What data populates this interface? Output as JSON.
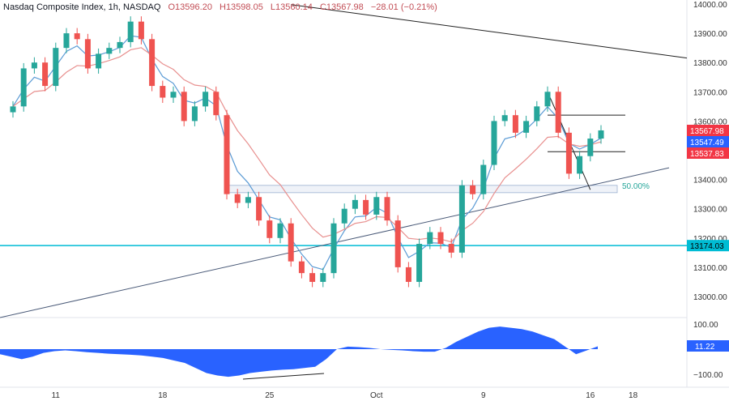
{
  "header": {
    "symbol": "Nasdaq Composite Index, 1h, NASDAQ",
    "open": "O13596.20",
    "high": "H13598.05",
    "low": "L13560.14",
    "close": "C13567.98",
    "change": "−28.01 (−0.21%)"
  },
  "colors": {
    "up": "#26a69a",
    "down": "#ef5350",
    "ema_fast": "#5b9bd5",
    "ema_slow": "#e8908f",
    "hline": "#00bcd4",
    "osc": "#2962ff",
    "label_red": "#f23645",
    "label_blue": "#2962ff"
  },
  "chart_data": [
    {
      "type": "candlestick",
      "ylim": [
        12950,
        14000
      ],
      "y_ticks": [
        "14000.00",
        "13900.00",
        "13800.00",
        "13700.00",
        "13600.00",
        "13400.00",
        "13300.00",
        "13200.00",
        "13100.00",
        "13000.00"
      ],
      "x_ticks": [
        {
          "t": "Sep 11 a",
          "label": "11"
        },
        {
          "t": "Sep 18 a",
          "label": "18"
        },
        {
          "t": "Sep 25 a",
          "label": "25"
        },
        {
          "t": "Oct 2 a",
          "label": "Oct"
        },
        {
          "t": "Oct 9 a",
          "label": "9"
        },
        {
          "t": "Oct 16 a",
          "label": "16"
        },
        {
          "t": "Oct 18",
          "label": "18"
        }
      ],
      "candles": [
        {
          "t": "Sep 7 a",
          "c": 13650
        },
        {
          "t": "Sep 7 p",
          "c": 13780
        },
        {
          "t": "Sep 8 a",
          "c": 13800
        },
        {
          "t": "Sep 8 p",
          "c": 13720
        },
        {
          "t": "Sep 11 a",
          "c": 13850
        },
        {
          "t": "Sep 11 p",
          "c": 13900
        },
        {
          "t": "Sep 12 a",
          "c": 13880
        },
        {
          "t": "Sep 12 p",
          "c": 13780
        },
        {
          "t": "Sep 13 a",
          "c": 13830
        },
        {
          "t": "Sep 13 p",
          "c": 13850
        },
        {
          "t": "Sep 14 a",
          "c": 13870
        },
        {
          "t": "Sep 14 p",
          "c": 13940
        },
        {
          "t": "Sep 15 a",
          "c": 13880
        },
        {
          "t": "Sep 15 p",
          "c": 13720
        },
        {
          "t": "Sep 18 a",
          "c": 13680
        },
        {
          "t": "Sep 18 p",
          "c": 13700
        },
        {
          "t": "Sep 19 a",
          "c": 13600
        },
        {
          "t": "Sep 19 p",
          "c": 13650
        },
        {
          "t": "Sep 20 a",
          "c": 13700
        },
        {
          "t": "Sep 20 p",
          "c": 13620
        },
        {
          "t": "Sep 21 a",
          "c": 13350
        },
        {
          "t": "Sep 21 p",
          "c": 13320
        },
        {
          "t": "Sep 22 a",
          "c": 13340
        },
        {
          "t": "Sep 22 p",
          "c": 13260
        },
        {
          "t": "Sep 25 a",
          "c": 13200
        },
        {
          "t": "Sep 25 p",
          "c": 13250
        },
        {
          "t": "Sep 26 a",
          "c": 13120
        },
        {
          "t": "Sep 26 p",
          "c": 13080
        },
        {
          "t": "Sep 27 a",
          "c": 13050
        },
        {
          "t": "Sep 27 p",
          "c": 13080
        },
        {
          "t": "Sep 28 a",
          "c": 13250
        },
        {
          "t": "Sep 28 p",
          "c": 13300
        },
        {
          "t": "Sep 29 a",
          "c": 13330
        },
        {
          "t": "Sep 29 p",
          "c": 13280
        },
        {
          "t": "Oct 2 a",
          "c": 13340
        },
        {
          "t": "Oct 2 p",
          "c": 13260
        },
        {
          "t": "Oct 3 a",
          "c": 13100
        },
        {
          "t": "Oct 3 p",
          "c": 13050
        },
        {
          "t": "Oct 4 a",
          "c": 13180
        },
        {
          "t": "Oct 4 p",
          "c": 13220
        },
        {
          "t": "Oct 5 a",
          "c": 13180
        },
        {
          "t": "Oct 5 p",
          "c": 13150
        },
        {
          "t": "Oct 6 a",
          "c": 13380
        },
        {
          "t": "Oct 6 p",
          "c": 13350
        },
        {
          "t": "Oct 9 a",
          "c": 13450
        },
        {
          "t": "Oct 9 p",
          "c": 13600
        },
        {
          "t": "Oct 10 a",
          "c": 13620
        },
        {
          "t": "Oct 10 p",
          "c": 13560
        },
        {
          "t": "Oct 11 a",
          "c": 13600
        },
        {
          "t": "Oct 11 p",
          "c": 13650
        },
        {
          "t": "Oct 12 a",
          "c": 13700
        },
        {
          "t": "Oct 12 p",
          "c": 13560
        },
        {
          "t": "Oct 13 a",
          "c": 13420
        },
        {
          "t": "Oct 13 p",
          "c": 13480
        },
        {
          "t": "Oct 16 a",
          "c": 13540
        },
        {
          "t": "Oct 16 p",
          "c": 13567.98
        }
      ],
      "price_labels": [
        {
          "value": "13567.98",
          "color": "#f23645"
        },
        {
          "value": "13547.49",
          "color": "#2962ff"
        },
        {
          "value": "13537.83",
          "color": "#f23645"
        }
      ],
      "horizontal_line": {
        "price": 13174.03,
        "label": "13174.03"
      },
      "trendlines": [
        {
          "from": {
            "t": "Sep 26 a",
            "p": 13998
          },
          "to": {
            "t": "Oct 16 p",
            "p": 13855
          }
        },
        {
          "from": {
            "t": "Sep 7 a",
            "p": 12938
          },
          "to": {
            "t": "Oct 16 p",
            "p": 13388
          }
        }
      ],
      "fib_zone": {
        "from": "Sep 21 a",
        "to": "Oct 16 p",
        "p_high": 13380,
        "p_low": 13355,
        "label": "50.00%"
      },
      "pattern_lines": [
        {
          "from": {
            "t": "Oct 12 a",
            "p": 13620
          },
          "to": {
            "t": "Oct 16 p",
            "p": 13620
          }
        },
        {
          "from": {
            "t": "Oct 12 a",
            "p": 13495
          },
          "to": {
            "t": "Oct 16 p",
            "p": 13495
          }
        },
        {
          "from": {
            "t": "Oct 12 a",
            "p": 13700
          },
          "to": {
            "t": "Oct 16 a",
            "p": 13365
          }
        }
      ]
    },
    {
      "type": "area",
      "y_ticks": [
        "100.00",
        "−100.00"
      ],
      "current_label": "11.22",
      "values": [
        -20,
        -30,
        -40,
        -30,
        -15,
        -8,
        -5,
        -8,
        -12,
        -15,
        -18,
        -20,
        -22,
        -25,
        -30,
        -35,
        -45,
        -55,
        -75,
        -95,
        -105,
        -110,
        -105,
        -95,
        -90,
        -85,
        -82,
        -80,
        -75,
        -70,
        -40,
        0,
        10,
        8,
        5,
        0,
        -3,
        -5,
        -8,
        -10,
        -10,
        5,
        30,
        50,
        70,
        85,
        90,
        85,
        80,
        70,
        55,
        40,
        10,
        -20,
        -5,
        11.22
      ]
    }
  ]
}
